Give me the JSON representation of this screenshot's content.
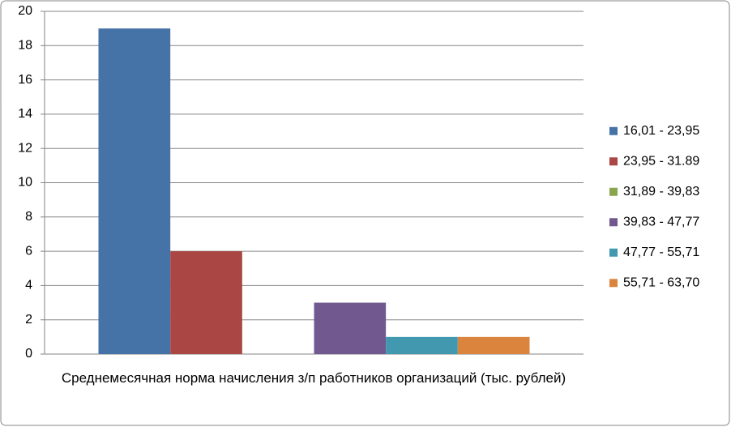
{
  "chart_data": {
    "type": "bar",
    "categories": [
      "Среднемесячная норма начисления з/п работников организаций (тыс. рублей)"
    ],
    "series": [
      {
        "name": "16,01 - 23,95",
        "color": "#4572a7",
        "values": [
          19
        ]
      },
      {
        "name": "23,95 - 31.89",
        "color": "#aa4643",
        "values": [
          6
        ]
      },
      {
        "name": "31,89 - 39,83",
        "color": "#89a54e",
        "values": [
          0
        ]
      },
      {
        "name": "39,83 - 47,77",
        "color": "#71588f",
        "values": [
          3
        ]
      },
      {
        "name": "47,77 - 55,71",
        "color": "#4198af",
        "values": [
          1
        ]
      },
      {
        "name": "55,71 - 63,70",
        "color": "#db843d",
        "values": [
          1
        ]
      }
    ],
    "ylim": [
      0,
      20
    ],
    "yticks": [
      0,
      2,
      4,
      6,
      8,
      10,
      12,
      14,
      16,
      18,
      20
    ],
    "grid": true,
    "legend": "right"
  }
}
